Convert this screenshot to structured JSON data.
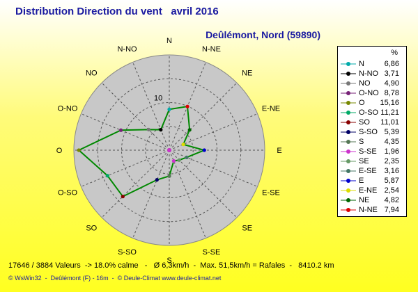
{
  "header": {
    "title": "Distribution Direction du vent   avril 2016",
    "location": "Deûlémont, Nord (59890)"
  },
  "chart_data": {
    "type": "polar-line",
    "unit": "%",
    "scale_label": "10",
    "radial_max": 16,
    "directions": [
      "N",
      "N-NE",
      "NE",
      "E-NE",
      "E",
      "E-SE",
      "SE",
      "S-SE",
      "S",
      "S-SO",
      "SO",
      "O-SO",
      "O",
      "O-NO",
      "NO",
      "N-NO"
    ],
    "values": [
      6.86,
      7.94,
      4.82,
      2.54,
      5.87,
      3.16,
      2.35,
      1.96,
      4.35,
      5.39,
      11.01,
      11.21,
      15.16,
      8.78,
      4.9,
      3.71
    ],
    "grid": true,
    "line_color": "#008800",
    "legend_position": "right"
  },
  "legend": {
    "unit": "%",
    "items": [
      {
        "name": "N",
        "value": "6,86",
        "color": "#00aaaa"
      },
      {
        "name": "N-NO",
        "value": "3,71",
        "color": "#000000"
      },
      {
        "name": "NO",
        "value": "4,90",
        "color": "#777777"
      },
      {
        "name": "O-NO",
        "value": "8,78",
        "color": "#772277"
      },
      {
        "name": "O",
        "value": "15,16",
        "color": "#778800"
      },
      {
        "name": "O-SO",
        "value": "11,21",
        "color": "#00aa66"
      },
      {
        "name": "SO",
        "value": "11,01",
        "color": "#880000"
      },
      {
        "name": "S-SO",
        "value": "5,39",
        "color": "#000066"
      },
      {
        "name": "S",
        "value": "4,35",
        "color": "#557755"
      },
      {
        "name": "S-SE",
        "value": "1,96",
        "color": "#cc33cc"
      },
      {
        "name": "SE",
        "value": "2,35",
        "color": "#669966"
      },
      {
        "name": "E-SE",
        "value": "3,16",
        "color": "#447766"
      },
      {
        "name": "E",
        "value": "5,87",
        "color": "#0000cc"
      },
      {
        "name": "E-NE",
        "value": "2,54",
        "color": "#dddd00"
      },
      {
        "name": "NE",
        "value": "4,82",
        "color": "#006600"
      },
      {
        "name": "N-NE",
        "value": "7,94",
        "color": "#dd0000"
      }
    ]
  },
  "stats": "17646 / 3884 Valeurs  -> 18.0% calme   -   Ø 6,3km/h  -  Max. 51,5km/h = Rafales  -   8410.2 km",
  "footer": "© WsWin32  -  Deûlémont (F) - 16m  -  © Deule-Climat www.deule-climat.net"
}
